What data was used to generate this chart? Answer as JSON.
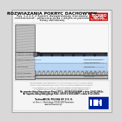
{
  "bg_outer": "#d8d8d8",
  "page_color": "#ffffff",
  "page_border": "#999999",
  "inner_border": "#bbbbbb",
  "title1": "ROZWIAZANIA POKRYC DACHOWYCH",
  "title2": "Rys. 1.2.2.3_2 System dwuwarstwowy mocowany",
  "title3": "mechanicznie - polaczona polka z attyka za pomoca",
  "title4": "listwy dociskowej",
  "logo_red": "#cc2222",
  "logo_text1": "TECHNO",
  "logo_text2": "NICOL",
  "logo_sub": "No 1 Roof in Russia",
  "footer_ref1": "Nr raportu klasyfikacyjnego Brusl ITT S. 307/R/10/01/BNP z dnia 12-01-2011r.",
  "footer_ref2": "Nr raportu klasyfikacyjnego RD2: 307/R-2/10/01/BNP z dnia 8-12-2010r.",
  "footer_company": "TechnoNICOL POLSKA SP. Z O. O.",
  "footer_addr": "ul. Gen. L. Okulickiego 7/9 05-500 Piaseczno",
  "footer_web": "www.technonicol.pl",
  "wall_color": "#c0c0c0",
  "wall_hatch_color": "#888888",
  "layer_trap_color": "#aaaaaa",
  "layer_ins1_color": "#b8d4f0",
  "layer_ins2_color": "#d0e8ff",
  "layer_mem1_color": "#444455",
  "layer_mem2_color": "#222233",
  "strip_color": "#777777",
  "label_color": "#111111",
  "line_color": "#555555",
  "grid_color": "#cccccc"
}
